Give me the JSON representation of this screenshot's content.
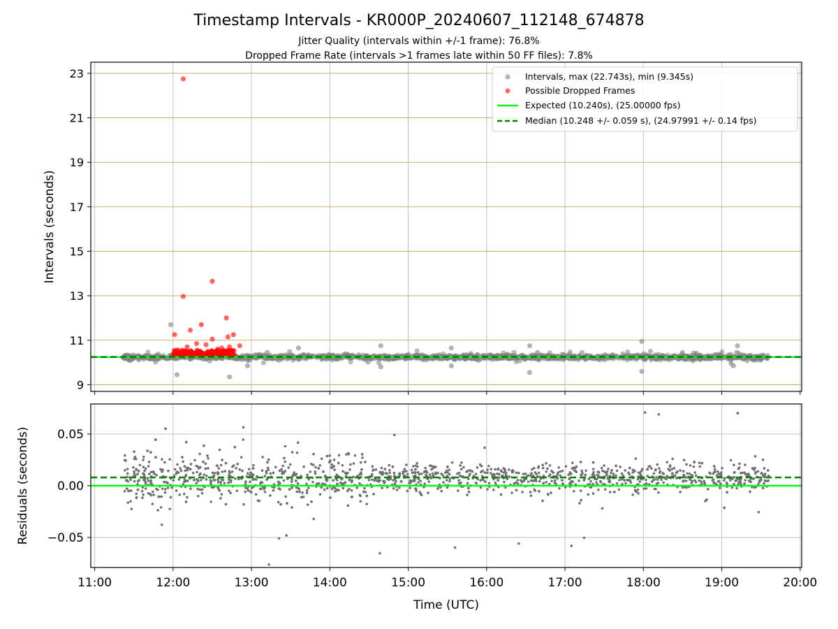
{
  "title": "Timestamp Intervals - KR000P_20240607_112148_674878",
  "subtitle1": "Jitter Quality (intervals within +/-1 frame): 76.8%",
  "subtitle2": "Dropped Frame Rate (intervals >1 frames late within 50 FF files): 7.8%",
  "colors": {
    "intervals": "#808080",
    "dropped": "#ff0000",
    "expected": "#00ff00",
    "median": "#008000",
    "hgrid_top": "#c8b060",
    "grid": "#c0c0c0"
  },
  "chart_data": [
    {
      "type": "scatter",
      "ylabel": "Intervals (seconds)",
      "xlim": [
        10.95,
        20.02
      ],
      "ylim": [
        8.7,
        23.5
      ],
      "yticks": [
        "9",
        "11",
        "13",
        "15",
        "17",
        "19",
        "21",
        "23"
      ],
      "yticks_values": [
        9,
        11,
        13,
        15,
        17,
        19,
        21,
        23
      ],
      "grid": "on",
      "legend_placement": "top-right",
      "legend": [
        "Intervals, max (22.743s), min (9.345s)",
        "Possible Dropped Frames",
        "Expected (10.240s), (25.00000 fps)",
        "Median (10.248 +/- 0.059 s), (24.97991 +/- 0.14 fps)"
      ],
      "expected": 10.24,
      "median": 10.248,
      "interval_range": [
        11.36,
        19.6
      ],
      "interval_outliers": [
        [
          11.97,
          11.7
        ],
        [
          12.05,
          9.45
        ],
        [
          12.22,
          10.45
        ],
        [
          12.95,
          9.85
        ],
        [
          13.6,
          10.65
        ],
        [
          14.65,
          10.75
        ],
        [
          14.65,
          9.8
        ],
        [
          15.55,
          10.65
        ],
        [
          15.55,
          9.85
        ],
        [
          16.55,
          10.75
        ],
        [
          16.55,
          9.55
        ],
        [
          16.65,
          10.45
        ],
        [
          17.98,
          10.95
        ],
        [
          17.98,
          9.6
        ],
        [
          19.2,
          10.75
        ],
        [
          19.15,
          9.85
        ],
        [
          12.72,
          9.35
        ],
        [
          12.3,
          10.55
        ],
        [
          13.2,
          10.45
        ],
        [
          18.5,
          10.45
        ]
      ],
      "dropped": [
        [
          12.13,
          22.75
        ],
        [
          12.13,
          12.97
        ],
        [
          12.5,
          13.65
        ],
        [
          12.68,
          12.0
        ],
        [
          12.36,
          11.7
        ],
        [
          12.02,
          11.25
        ],
        [
          12.22,
          11.45
        ],
        [
          12.7,
          11.15
        ],
        [
          12.77,
          11.25
        ],
        [
          12.5,
          11.05
        ],
        [
          12.3,
          10.85
        ],
        [
          12.85,
          10.75
        ],
        [
          12.42,
          10.8
        ],
        [
          12.62,
          10.65
        ],
        [
          12.72,
          10.7
        ],
        [
          12.05,
          10.55
        ],
        [
          12.18,
          10.7
        ],
        [
          12.57,
          10.6
        ]
      ]
    },
    {
      "type": "scatter",
      "xlabel": "Time (UTC)",
      "ylabel": "Residuals (seconds)",
      "xlim": [
        10.95,
        20.02
      ],
      "ylim": [
        -0.079,
        0.079
      ],
      "xticks": [
        "11:00",
        "12:00",
        "13:00",
        "14:00",
        "15:00",
        "16:00",
        "17:00",
        "18:00",
        "19:00",
        "20:00"
      ],
      "xticks_values": [
        11,
        12,
        13,
        14,
        15,
        16,
        17,
        18,
        19,
        20
      ],
      "yticks": [
        "0.05",
        "0.00",
        "−0.05"
      ],
      "yticks_values": [
        0.05,
        0.0,
        -0.05
      ],
      "grid": "on",
      "expected_residual": 0.0,
      "median_residual": 0.008,
      "residual_range": [
        11.38,
        19.6
      ]
    }
  ]
}
